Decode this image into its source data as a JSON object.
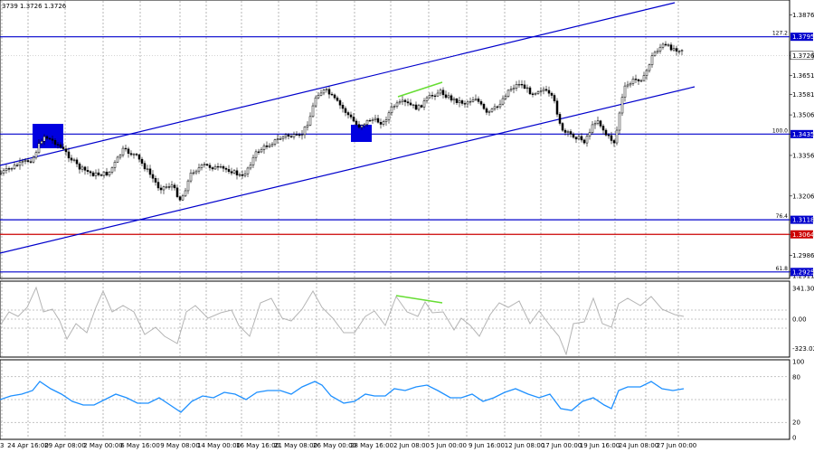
{
  "header": {
    "ohlc_text": "3739 1.3726 1.3726"
  },
  "main_axis": {
    "ylim": [
      1.2911,
      1.3921
    ],
    "ticks": [
      {
        "label": "1.3876",
        "value": 1.3876
      },
      {
        "label": "1.3726",
        "value": 1.3726
      },
      {
        "label": "1.3651",
        "value": 1.3651
      },
      {
        "label": "1.3581",
        "value": 1.3581
      },
      {
        "label": "1.3506",
        "value": 1.3506
      },
      {
        "label": "1.3435",
        "value": 1.3435
      },
      {
        "label": "1.3356",
        "value": 1.3356
      },
      {
        "label": "1.3206",
        "value": 1.3206
      },
      {
        "label": "1.3118",
        "value": 1.3118
      },
      {
        "label": "1.3064",
        "value": 1.3064
      },
      {
        "label": "1.2986",
        "value": 1.2986
      },
      {
        "label": "1.2925",
        "value": 1.2925
      },
      {
        "label": "1.2911",
        "value": 1.2911
      }
    ]
  },
  "x_axis": {
    "labels": [
      "24 Apr 16:00",
      "29 Apr 08:00",
      "2 May 00:00",
      "6 May 16:00",
      "9 May 08:00",
      "14 May 00:00",
      "16 May 16:00",
      "21 May 08:00",
      "26 May 00:00",
      "28 May 16:00",
      "2 Jun 08:00",
      "5 Jun 00:00",
      "9 Jun 16:00",
      "12 Jun 08:00",
      "17 Jun 00:00",
      "19 Jun 16:00",
      "24 Jun 08:00",
      "27 Jun 00:00"
    ],
    "first_label": "3"
  },
  "levels": [
    {
      "value": 1.3795,
      "label": "1.3795",
      "fib": "127.2",
      "color": "#0000cc"
    },
    {
      "value": 1.3435,
      "label": "1.3435",
      "fib": "100.0",
      "color": "#0000cc"
    },
    {
      "value": 1.3118,
      "label": "1.3118",
      "fib": "76.4",
      "color": "#0000cc"
    },
    {
      "value": 1.3064,
      "label": "1.3064",
      "fib": "",
      "color": "#cc0000"
    },
    {
      "value": 1.2925,
      "label": "1.2925",
      "fib": "61.8",
      "color": "#0000cc"
    }
  ],
  "current_price": {
    "value": 1.3726,
    "label": "1.3726"
  },
  "cci_panel": {
    "ylim": [
      -400,
      400
    ],
    "ticks": [
      {
        "label": "341.3079",
        "value": 341.3079
      },
      {
        "label": "0.00",
        "value": 0
      },
      {
        "label": "-323.021",
        "value": -323.021
      }
    ]
  },
  "rsi_panel": {
    "ylim": [
      0,
      100
    ],
    "ticks": [
      {
        "label": "100",
        "value": 100
      },
      {
        "label": "80",
        "value": 80
      },
      {
        "label": "20",
        "value": 20
      },
      {
        "label": "0",
        "value": 0
      }
    ]
  },
  "colors": {
    "channel": "#0000cc",
    "candle": "#000000",
    "cci_line": "#b4b4b4",
    "rsi_line": "#1e90ff",
    "divergence": "#66dd33",
    "box": "#0000e0",
    "grid": "#888888"
  },
  "chart_data": [
    {
      "type": "candlestick",
      "title": "",
      "xlabel": "",
      "ylabel": "",
      "x": [
        "24 Apr 16:00",
        "29 Apr 08:00",
        "2 May 00:00",
        "6 May 16:00",
        "9 May 08:00",
        "14 May 00:00",
        "16 May 16:00",
        "21 May 08:00",
        "26 May 00:00",
        "28 May 16:00",
        "2 Jun 08:00",
        "5 Jun 00:00",
        "9 Jun 16:00",
        "12 Jun 08:00",
        "17 Jun 00:00",
        "19 Jun 16:00",
        "24 Jun 08:00",
        "27 Jun 00:00"
      ],
      "series": [
        {
          "values": [
            1.33,
            1.3436,
            1.33,
            1.338,
            1.319,
            1.331,
            1.329,
            1.343,
            1.356,
            1.346,
            1.352,
            1.358,
            1.354,
            1.36,
            1.345,
            1.344,
            1.362,
            1.3726
          ]
        }
      ],
      "ylim": [
        1.2911,
        1.3921
      ],
      "grid": true,
      "legend": "none"
    },
    {
      "type": "line",
      "title": "",
      "series": [
        {
          "values": [
            50,
            150,
            -50,
            200,
            -200,
            40,
            -60,
            150,
            300,
            -100,
            180,
            280,
            -150,
            150,
            -250,
            20,
            160,
            0
          ]
        }
      ],
      "ylim": [
        -323.021,
        341.3079
      ]
    },
    {
      "type": "line",
      "title": "",
      "series": [
        {
          "values": [
            45,
            60,
            40,
            52,
            35,
            52,
            45,
            60,
            70,
            42,
            55,
            65,
            48,
            60,
            40,
            42,
            68,
            65
          ]
        }
      ],
      "ylim": [
        0,
        100
      ]
    }
  ]
}
